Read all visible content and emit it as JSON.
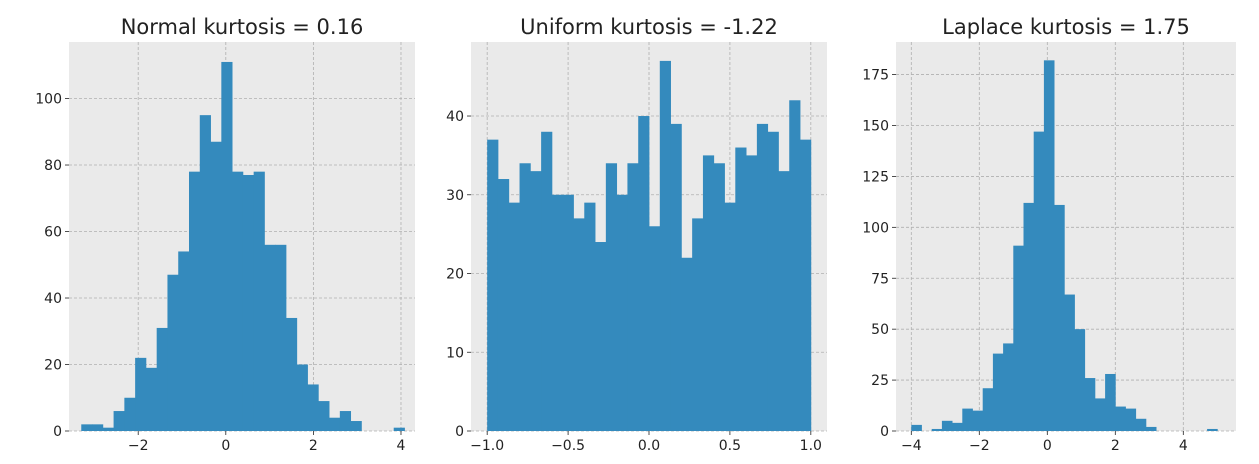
{
  "style": {
    "axes_bg": "#eaeaea",
    "bar_color": "#348abd",
    "grid_color": "#b0b0b0",
    "text_color": "#222222",
    "figure_bg": "#ffffff"
  },
  "chart_data": [
    {
      "type": "bar",
      "title": "Normal kurtosis = 0.16",
      "xlabel": "",
      "ylabel": "",
      "xlim": [
        -3.58,
        4.32
      ],
      "ylim": [
        0,
        117
      ],
      "xticks": [
        -2,
        0,
        2,
        4
      ],
      "yticks": [
        0,
        20,
        40,
        60,
        80,
        100
      ],
      "grid": true,
      "bin_width": 0.246,
      "bin_starts": [
        -3.3,
        -3.054,
        -2.808,
        -2.562,
        -2.316,
        -2.07,
        -1.824,
        -1.578,
        -1.332,
        -1.086,
        -0.84,
        -0.594,
        -0.348,
        -0.102,
        0.144,
        0.39,
        0.636,
        0.882,
        1.128,
        1.374,
        1.62,
        1.866,
        2.112,
        2.358,
        2.604,
        2.85,
        3.096,
        3.342,
        3.588,
        3.834
      ],
      "counts": [
        2,
        2,
        1,
        6,
        10,
        22,
        19,
        31,
        47,
        54,
        78,
        95,
        87,
        111,
        78,
        77,
        78,
        56,
        56,
        34,
        20,
        14,
        9,
        4,
        6,
        3,
        0,
        0,
        0,
        1
      ]
    },
    {
      "type": "bar",
      "title": "Uniform kurtosis = -1.22",
      "xlabel": "",
      "ylabel": "",
      "xlim": [
        -1.1,
        1.1
      ],
      "ylim": [
        0,
        49.4
      ],
      "xticks": [
        -1.0,
        -0.5,
        0.0,
        0.5,
        1.0
      ],
      "xtick_labels": [
        "−1.0",
        "−0.5",
        "0.0",
        "0.5",
        "1.0"
      ],
      "yticks": [
        0,
        10,
        20,
        30,
        40
      ],
      "grid": true,
      "bin_width": 0.06667,
      "bin_starts": [
        -1.0,
        -0.93333,
        -0.86667,
        -0.8,
        -0.73333,
        -0.66667,
        -0.6,
        -0.53333,
        -0.46667,
        -0.4,
        -0.33333,
        -0.26667,
        -0.2,
        -0.13333,
        -0.06667,
        0.0,
        0.06667,
        0.13333,
        0.2,
        0.26667,
        0.33333,
        0.4,
        0.46667,
        0.53333,
        0.6,
        0.66667,
        0.73333,
        0.8,
        0.86667,
        0.93333
      ],
      "counts": [
        37,
        32,
        29,
        34,
        33,
        38,
        30,
        30,
        27,
        29,
        24,
        34,
        30,
        34,
        40,
        26,
        47,
        39,
        22,
        27,
        35,
        34,
        29,
        36,
        35,
        39,
        38,
        33,
        42,
        37
      ]
    },
    {
      "type": "bar",
      "title": "Laplace kurtosis = 1.75",
      "xlabel": "",
      "ylabel": "",
      "xlim": [
        -4.45,
        5.55
      ],
      "ylim": [
        0,
        191
      ],
      "xticks": [
        -4,
        -2,
        0,
        2,
        4
      ],
      "yticks": [
        0,
        25,
        50,
        75,
        100,
        125,
        150,
        175
      ],
      "grid": true,
      "bin_width": 0.3,
      "bin_starts": [
        -4.0,
        -3.7,
        -3.4,
        -3.1,
        -2.8,
        -2.5,
        -2.2,
        -1.9,
        -1.6,
        -1.3,
        -1.0,
        -0.7,
        -0.4,
        -0.1,
        0.2,
        0.5,
        0.8,
        1.1,
        1.4,
        1.7,
        2.0,
        2.3,
        2.6,
        2.9,
        3.2,
        3.5,
        3.8,
        4.1,
        4.4,
        4.7
      ],
      "counts": [
        3,
        0,
        1,
        5,
        4,
        11,
        10,
        21,
        38,
        43,
        91,
        112,
        147,
        182,
        111,
        67,
        50,
        26,
        16,
        28,
        12,
        11,
        6,
        2,
        0,
        0,
        0,
        0,
        0,
        1
      ]
    }
  ]
}
